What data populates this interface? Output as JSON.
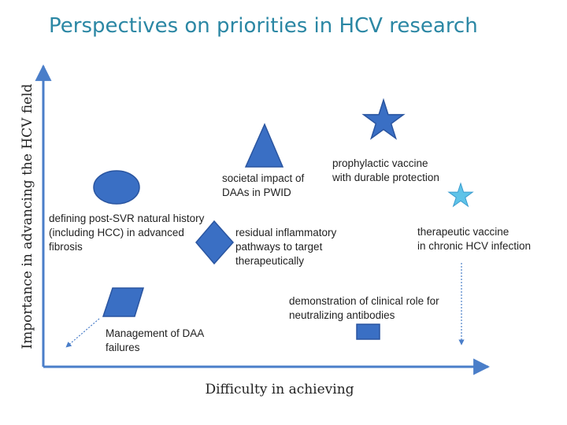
{
  "title": "Perspectives on priorities in HCV research",
  "axes": {
    "x_label": "Difficulty in achieving",
    "y_label": "Importance in advancing the HCV field"
  },
  "colors": {
    "title": "#2b87a4",
    "axis": "#4a7ec9",
    "shape_fill": "#3a6fc4",
    "shape_stroke": "#2a55a0",
    "light_star": "#5fc3e8"
  },
  "items": [
    {
      "shape": "ellipse-icon",
      "lines": [
        "defining post-SVR natural history",
        "(including HCC) in advanced",
        "fibrosis"
      ]
    },
    {
      "shape": "triangle-icon",
      "lines": [
        "societal impact of",
        "DAAs in PWID"
      ]
    },
    {
      "shape": "star-icon",
      "lines": [
        "prophylactic vaccine",
        "with durable protection"
      ]
    },
    {
      "shape": "light-star-icon",
      "lines": [
        "therapeutic vaccine",
        "in chronic HCV infection"
      ]
    },
    {
      "shape": "diamond-icon",
      "lines": [
        "residual inflammatory",
        "pathways  to target",
        "therapeutically"
      ]
    },
    {
      "shape": "parallelogram-icon",
      "lines": [
        "Management of DAA",
        "failures"
      ]
    },
    {
      "shape": "small-rectangle-icon",
      "lines": [
        "demonstration of clinical role for",
        "neutralizing antibodies"
      ]
    }
  ]
}
